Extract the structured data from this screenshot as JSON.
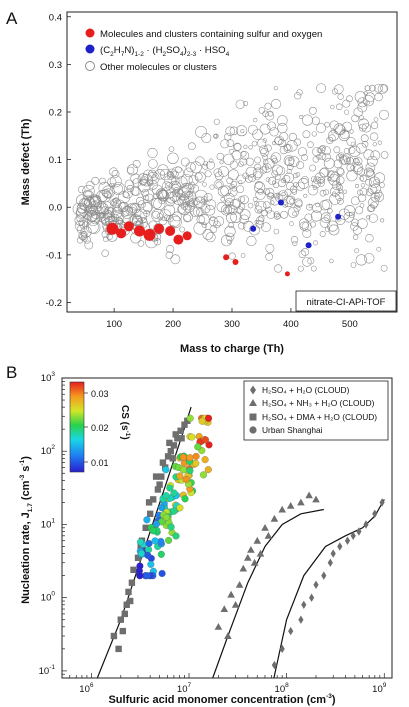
{
  "colors": {
    "red": "#e61e1e",
    "blue": "#1c22c8",
    "open": "#8a8a8a",
    "dark": "#6e6e6e"
  },
  "panel_a": {
    "letter": "A",
    "ylabel": "Mass defect (Th)",
    "xlabel": "Mass to charge (Th)",
    "xticks": [
      "100",
      "200",
      "300",
      "400",
      "500"
    ],
    "yticks": [
      "-0.2",
      "-0.1",
      "0.0",
      "0.1",
      "0.2",
      "0.3",
      "0.4"
    ],
    "legend": {
      "red": "Molecules and clusters containing sulfur and oxygen",
      "blue_pre": "(C",
      "blue_s1": "2",
      "blue_m1": "H",
      "blue_s2": "7",
      "blue_m2": "N)",
      "blue_s3": "1-2",
      "blue_m3": " · (H",
      "blue_s4": "2",
      "blue_m4": "SO",
      "blue_s5": "4",
      "blue_m5": ")",
      "blue_s6": "2-3",
      "blue_m6": " · HSO",
      "blue_s7": "4",
      "open": "Other molecules or clusters"
    },
    "instrument": "nitrate-CI-APi-TOF"
  },
  "panel_b": {
    "letter": "B",
    "ylabel_main": "Nucleation rate, J",
    "ylabel_sub": "1.7",
    "ylabel_unit_pre": " (cm",
    "ylabel_exp1": "-3",
    "ylabel_mid": " s",
    "ylabel_exp2": "-1",
    "ylabel_end": ")",
    "xlabel_main": "Sulfuric acid monomer concentration (cm",
    "xlabel_exp": "-3",
    "xlabel_end": ")",
    "x_ticks": [
      {
        "base": "10",
        "exp": "6"
      },
      {
        "base": "10",
        "exp": "7"
      },
      {
        "base": "10",
        "exp": "8"
      },
      {
        "base": "10",
        "exp": "9"
      }
    ],
    "y_ticks": [
      {
        "base": "10",
        "exp": "-1"
      },
      {
        "base": "10",
        "exp": "0"
      },
      {
        "base": "10",
        "exp": "1"
      },
      {
        "base": "10",
        "exp": "2"
      },
      {
        "base": "10",
        "exp": "3"
      }
    ],
    "colorbar": {
      "label": "CS (s",
      "label_exp": "-1",
      "label_end": ")",
      "ticks": [
        "0.03",
        "0.02",
        "0.01"
      ]
    },
    "legend": [
      {
        "symbol": "diamond",
        "text": "H₂SO₄ + H₂O (CLOUD)"
      },
      {
        "symbol": "triangle",
        "text": "H₂SO₄ + NH₃ + H₂O (CLOUD)"
      },
      {
        "symbol": "square",
        "text": "H₂SO₄ + DMA + H₂O (CLOUD)"
      },
      {
        "symbol": "circle",
        "text": "Urban Shanghai"
      }
    ]
  },
  "chart_data": [
    {
      "type": "scatter",
      "xlabel": "Mass to charge (Th)",
      "ylabel": "Mass defect (Th)",
      "xlim": [
        20,
        580
      ],
      "ylim": [
        -0.22,
        0.41
      ],
      "series": [
        {
          "name": "Molecules and clusters containing sulfur and oxygen",
          "points": [
            [
              97,
              -0.045
            ],
            [
              112,
              -0.055
            ],
            [
              125,
              -0.04
            ],
            [
              143,
              -0.05
            ],
            [
              160,
              -0.058
            ],
            [
              176,
              -0.045
            ],
            [
              195,
              -0.05
            ],
            [
              209,
              -0.068
            ],
            [
              224,
              -0.06
            ],
            [
              290,
              -0.105
            ],
            [
              306,
              -0.115
            ],
            [
              394,
              -0.14
            ]
          ]
        },
        {
          "name": "(C2H7N)1-2 · (H2SO4)2-3 · HSO4",
          "points": [
            [
              336,
              -0.045
            ],
            [
              383,
              0.01
            ],
            [
              430,
              -0.08
            ],
            [
              480,
              -0.02
            ]
          ]
        },
        {
          "name": "Other molecules or clusters",
          "points": "dense cloud of ~700 open circles, mass 40-560 Th, defect -0.2 to 0.25"
        }
      ]
    },
    {
      "type": "scatter",
      "xlabel": "Sulfuric acid monomer concentration (cm-3)",
      "ylabel": "Nucleation rate, J1.7 (cm-3 s-1)",
      "xscale": "log",
      "yscale": "log",
      "xlim": [
        500000,
        1200000000
      ],
      "ylim": [
        0.08,
        1000
      ],
      "series": [
        {
          "name": "H2SO4 + DMA + H2O (CLOUD)",
          "points": [
            [
              1900000,
              0.2
            ],
            [
              2100000,
              0.35
            ],
            [
              2200000,
              0.6
            ],
            [
              2300000,
              0.8
            ],
            [
              2400000,
              1.2
            ],
            [
              2600000,
              1.6
            ],
            [
              2700000,
              2.4
            ],
            [
              3000000,
              3.5
            ],
            [
              3300000,
              6
            ],
            [
              3600000,
              9
            ],
            [
              4000000,
              14
            ],
            [
              4300000,
              22
            ],
            [
              4800000,
              30
            ],
            [
              5200000,
              45
            ],
            [
              5700000,
              60
            ],
            [
              6100000,
              85
            ],
            [
              6500000,
              100
            ],
            [
              7000000,
              120
            ],
            [
              7600000,
              150
            ],
            [
              8200000,
              190
            ],
            [
              9000000,
              230
            ],
            [
              2500000,
              0.9
            ],
            [
              3200000,
              5
            ],
            [
              3900000,
              20
            ],
            [
              4600000,
              45
            ],
            [
              5400000,
              70
            ],
            [
              6300000,
              130
            ],
            [
              7300000,
              170
            ],
            [
              8400000,
              150
            ],
            [
              9600000,
              260
            ],
            [
              5000000,
              35
            ],
            [
              6800000,
              80
            ],
            [
              1700000,
              0.3
            ],
            [
              2000000,
              0.5
            ]
          ]
        },
        {
          "name": "H2SO4 + NH3 + H2O (CLOUD)",
          "points": [
            [
              20000000,
              0.4
            ],
            [
              23000000,
              0.7
            ],
            [
              25000000,
              0.3
            ],
            [
              27000000,
              1.1
            ],
            [
              30000000,
              0.8
            ],
            [
              33000000,
              1.5
            ],
            [
              36000000,
              2.5
            ],
            [
              40000000,
              3.5
            ],
            [
              43000000,
              4.5
            ],
            [
              47000000,
              3
            ],
            [
              50000000,
              6
            ],
            [
              54000000,
              4
            ],
            [
              60000000,
              9
            ],
            [
              65000000,
              7
            ],
            [
              75000000,
              12
            ],
            [
              90000000,
              16
            ],
            [
              110000000,
              18
            ],
            [
              140000000,
              20
            ],
            [
              170000000,
              25
            ],
            [
              200000000,
              22
            ]
          ]
        },
        {
          "name": "H2SO4 + H2O (CLOUD)",
          "points": [
            [
              75000000,
              0.12
            ],
            [
              90000000,
              0.2
            ],
            [
              110000000,
              0.35
            ],
            [
              140000000,
              0.5
            ],
            [
              150000000,
              0.8
            ],
            [
              180000000,
              1
            ],
            [
              200000000,
              1.5
            ],
            [
              240000000,
              2
            ],
            [
              280000000,
              3
            ],
            [
              300000000,
              4
            ],
            [
              350000000,
              5
            ],
            [
              420000000,
              6
            ],
            [
              480000000,
              7
            ],
            [
              550000000,
              8
            ],
            [
              650000000,
              10
            ],
            [
              800000000,
              14
            ],
            [
              950000000,
              20
            ]
          ]
        },
        {
          "name": "Urban Shanghai",
          "points": "~120 points, H2SO4 3e6-1.6e7 cm-3, J 2-300 cm-3 s-1, colored by CS 0.01-0.035 s-1"
        }
      ]
    }
  ]
}
